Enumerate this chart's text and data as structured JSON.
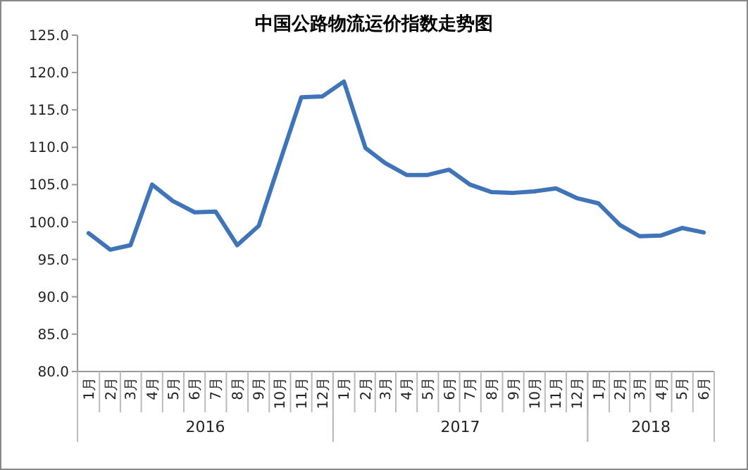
{
  "chart_data": {
    "type": "line",
    "title": "中国公路物流运价指数走势图",
    "x": [
      "2016-01",
      "2016-02",
      "2016-03",
      "2016-04",
      "2016-05",
      "2016-06",
      "2016-07",
      "2016-08",
      "2016-09",
      "2016-10",
      "2016-11",
      "2016-12",
      "2017-01",
      "2017-02",
      "2017-03",
      "2017-04",
      "2017-05",
      "2017-06",
      "2017-07",
      "2017-08",
      "2017-09",
      "2017-10",
      "2017-11",
      "2017-12",
      "2018-01",
      "2018-02",
      "2018-03",
      "2018-04",
      "2018-05",
      "2018-06"
    ],
    "xlim": [
      "2015-12-16",
      "2018-06-16"
    ],
    "xticks": [
      {
        "value": "2016-01",
        "label": "1月"
      },
      {
        "value": "2016-02",
        "label": "2月"
      },
      {
        "value": "2016-03",
        "label": "3月"
      },
      {
        "value": "2016-04",
        "label": "4月"
      },
      {
        "value": "2016-05",
        "label": "5月"
      },
      {
        "value": "2016-06",
        "label": "6月"
      },
      {
        "value": "2016-07",
        "label": "7月"
      },
      {
        "value": "2016-08",
        "label": "8月"
      },
      {
        "value": "2016-09",
        "label": "9月"
      },
      {
        "value": "2016-10",
        "label": "10月"
      },
      {
        "value": "2016-11",
        "label": "11月"
      },
      {
        "value": "2016-12",
        "label": "12月"
      },
      {
        "value": "2017-01",
        "label": "1月"
      },
      {
        "value": "2017-02",
        "label": "2月"
      },
      {
        "value": "2017-03",
        "label": "3月"
      },
      {
        "value": "2017-04",
        "label": "4月"
      },
      {
        "value": "2017-05",
        "label": "5月"
      },
      {
        "value": "2017-06",
        "label": "6月"
      },
      {
        "value": "2017-07",
        "label": "7月"
      },
      {
        "value": "2017-08",
        "label": "8月"
      },
      {
        "value": "2017-09",
        "label": "9月"
      },
      {
        "value": "2017-10",
        "label": "10月"
      },
      {
        "value": "2017-11",
        "label": "11月"
      },
      {
        "value": "2017-12",
        "label": "12月"
      },
      {
        "value": "2018-01",
        "label": "1月"
      },
      {
        "value": "2018-02",
        "label": "2月"
      },
      {
        "value": "2018-03",
        "label": "3月"
      },
      {
        "value": "2018-04",
        "label": "4月"
      },
      {
        "value": "2018-05",
        "label": "5月"
      },
      {
        "value": "2018-06",
        "label": "6月"
      }
    ],
    "annotations": [
      "2016",
      "2017",
      "2018"
    ],
    "series": [
      {
        "color": "#3f74b9",
        "values": [
          98.5,
          96.3,
          96.9,
          105.0,
          102.8,
          101.3,
          101.4,
          96.9,
          99.5,
          108.0,
          116.7,
          116.8,
          118.8,
          109.9,
          107.9,
          106.3,
          106.3,
          107.0,
          105.0,
          104.0,
          103.9,
          104.1,
          104.5,
          103.2,
          102.5,
          99.6,
          98.1,
          98.2,
          99.2,
          98.6
        ]
      }
    ],
    "ylim": [
      80,
      125
    ],
    "yticks": [
      {
        "value": 80,
        "label": "80.0"
      },
      {
        "value": 85,
        "label": "85.0"
      },
      {
        "value": 90,
        "label": "90.0"
      },
      {
        "value": 95,
        "label": "95.0"
      },
      {
        "value": 100,
        "label": "100.0"
      },
      {
        "value": 105,
        "label": "105.0"
      },
      {
        "value": 110,
        "label": "110.0"
      },
      {
        "value": 115,
        "label": "115.0"
      },
      {
        "value": 120,
        "label": "120.0"
      },
      {
        "value": 125,
        "label": "125.0"
      }
    ],
    "grid": false,
    "marker": "none",
    "line_style": "solid"
  }
}
